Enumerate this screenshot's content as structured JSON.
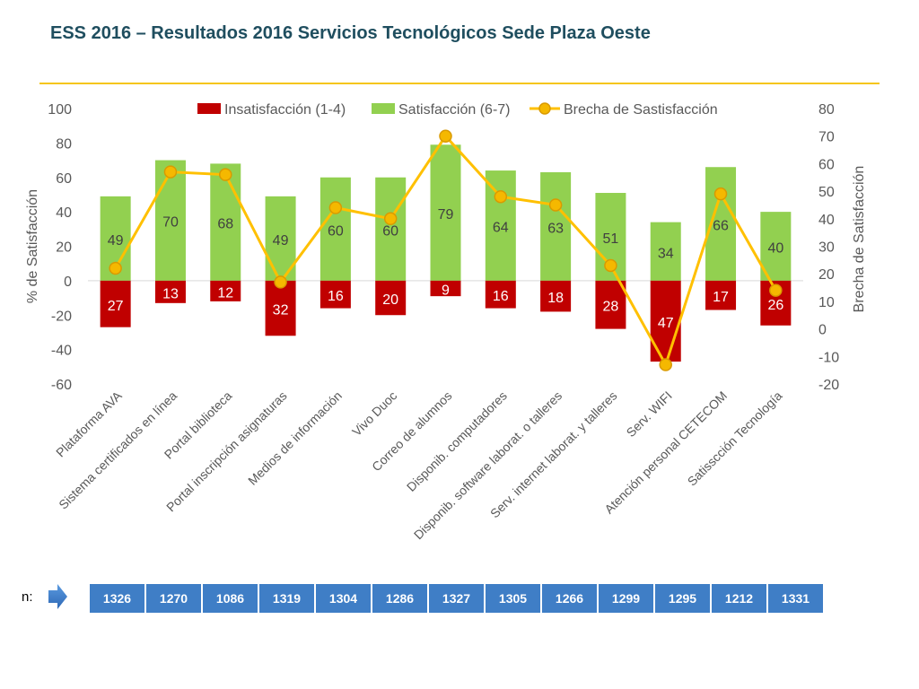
{
  "title": "ESS 2016 – Resultados 2016 Servicios Tecnológicos Sede Plaza Oeste",
  "colors": {
    "insat": "#c00000",
    "sat": "#92d050",
    "gap": "#ffc000",
    "gap_marker": "#f5b800",
    "n_cell": "#3f7ec6",
    "title": "#1f4e5f",
    "rule": "#f5c518"
  },
  "chart_data": {
    "type": "bar",
    "categories": [
      "Plataforma AVA",
      "Sistema certificados en línea",
      "Portal biblioteca",
      "Portal inscripción asignaturas",
      "Medios de información",
      "Vivo Duoc",
      "Correo de alumnos",
      "Disponib. computadores",
      "Disponib. software laborat. o talleres",
      "Serv. internet laborat. y talleres",
      "Serv. WIFI",
      "Atención personal CETECOM",
      "Satisscción Tecnología"
    ],
    "series": [
      {
        "name": "Insatisfacción (1-4)",
        "axis": "left",
        "values": [
          27,
          13,
          12,
          32,
          16,
          20,
          9,
          16,
          18,
          28,
          47,
          17,
          26
        ]
      },
      {
        "name": "Satisfacción (6-7)",
        "axis": "left",
        "values": [
          49,
          70,
          68,
          49,
          60,
          60,
          79,
          64,
          63,
          51,
          34,
          66,
          40
        ]
      },
      {
        "name": "Brecha de Sastisfacción",
        "axis": "right",
        "type": "line",
        "values": [
          22,
          57,
          56,
          17,
          44,
          40,
          70,
          48,
          45,
          23,
          -13,
          49,
          14
        ]
      }
    ],
    "ylabel": "% de Satisfacción",
    "ylim": [
      -60,
      100
    ],
    "yticks": [
      "100",
      "80",
      "60",
      "40",
      "20",
      "0",
      "-20",
      "-40",
      "-60"
    ],
    "y2label": "Brecha de Satisfacción",
    "y2lim": [
      -20,
      80
    ],
    "y2ticks": [
      "80",
      "70",
      "60",
      "50",
      "40",
      "30",
      "20",
      "10",
      "0",
      "-10",
      "-20"
    ],
    "legend": "top"
  },
  "n_label": "n:",
  "n_values": [
    "1326",
    "1270",
    "1086",
    "1319",
    "1304",
    "1286",
    "1327",
    "1305",
    "1266",
    "1299",
    "1295",
    "1212",
    "1331"
  ]
}
